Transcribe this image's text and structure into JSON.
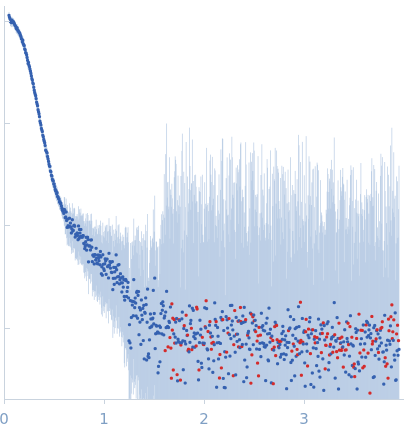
{
  "chart_data": {
    "type": "scatter",
    "title": "",
    "xlabel": "",
    "ylabel": "",
    "xlim": [
      0,
      4.0
    ],
    "y_scale": "log",
    "ylim_log10": [
      -3.7,
      0.15
    ],
    "x_ticks": [
      {
        "value": 0,
        "label": "0"
      },
      {
        "value": 1,
        "label": "1"
      },
      {
        "value": 2,
        "label": "2"
      },
      {
        "value": 3,
        "label": "3"
      }
    ],
    "y_ticks_log10": [
      0,
      -1,
      -2,
      -3
    ],
    "y_tick_labels_shown": false,
    "grid": false,
    "legend": "none",
    "colors": {
      "points": "#3561b0",
      "negative_points": "#d42b2b",
      "error_bars": "#b7cbe4",
      "axis": "#c9d3de",
      "tick_labels": "#7f9fc4"
    },
    "series": [
      {
        "values": [
          [
            0.05,
            0.05
          ],
          [
            0.07,
            -0.02
          ],
          [
            0.08,
            0.01
          ],
          [
            0.1,
            -0.02
          ],
          [
            0.12,
            -0.05
          ],
          [
            0.14,
            -0.09
          ],
          [
            0.16,
            -0.13
          ],
          [
            0.18,
            -0.18
          ],
          [
            0.2,
            -0.24
          ],
          [
            0.22,
            -0.31
          ],
          [
            0.24,
            -0.39
          ],
          [
            0.26,
            -0.47
          ],
          [
            0.28,
            -0.56
          ],
          [
            0.3,
            -0.66
          ],
          [
            0.32,
            -0.76
          ],
          [
            0.34,
            -0.86
          ],
          [
            0.36,
            -0.97
          ],
          [
            0.38,
            -1.07
          ],
          [
            0.4,
            -1.17
          ],
          [
            0.42,
            -1.26
          ],
          [
            0.44,
            -1.35
          ],
          [
            0.46,
            -1.44
          ],
          [
            0.48,
            -1.52
          ],
          [
            0.5,
            -1.59
          ],
          [
            0.52,
            -1.66
          ],
          [
            0.55,
            -1.75
          ],
          [
            0.58,
            -1.83
          ],
          [
            0.61,
            -1.9
          ],
          [
            0.64,
            -1.96
          ],
          [
            0.67,
            -2.01
          ],
          [
            0.7,
            -2.05
          ],
          [
            0.74,
            -2.1
          ],
          [
            0.78,
            -2.14
          ],
          [
            0.82,
            -2.19
          ],
          [
            0.86,
            -2.23
          ],
          [
            0.9,
            -2.27
          ],
          [
            0.94,
            -2.3
          ],
          [
            0.98,
            -2.34
          ],
          [
            1.02,
            -2.37
          ],
          [
            1.06,
            -2.4
          ],
          [
            1.1,
            -2.45
          ],
          [
            1.14,
            -2.5
          ],
          [
            1.18,
            -2.56
          ],
          [
            1.22,
            -2.62
          ],
          [
            1.26,
            -2.68
          ],
          [
            1.3,
            -2.73
          ],
          [
            1.35,
            -2.78
          ],
          [
            1.4,
            -2.82
          ],
          [
            1.45,
            -2.86
          ],
          [
            1.5,
            -2.9
          ],
          [
            1.55,
            -2.93
          ],
          [
            1.6,
            -2.96
          ],
          [
            1.7,
            -3.0
          ],
          [
            1.8,
            -3.02
          ],
          [
            1.9,
            -3.04
          ],
          [
            2.0,
            -3.05
          ],
          [
            2.2,
            -3.06
          ],
          [
            2.4,
            -3.07
          ],
          [
            2.6,
            -3.07
          ],
          [
            2.8,
            -3.08
          ],
          [
            3.0,
            -3.08
          ],
          [
            3.2,
            -3.08
          ],
          [
            3.4,
            -3.09
          ],
          [
            3.6,
            -3.09
          ],
          [
            3.8,
            -3.1
          ],
          [
            3.95,
            -3.1
          ]
        ]
      }
    ]
  }
}
